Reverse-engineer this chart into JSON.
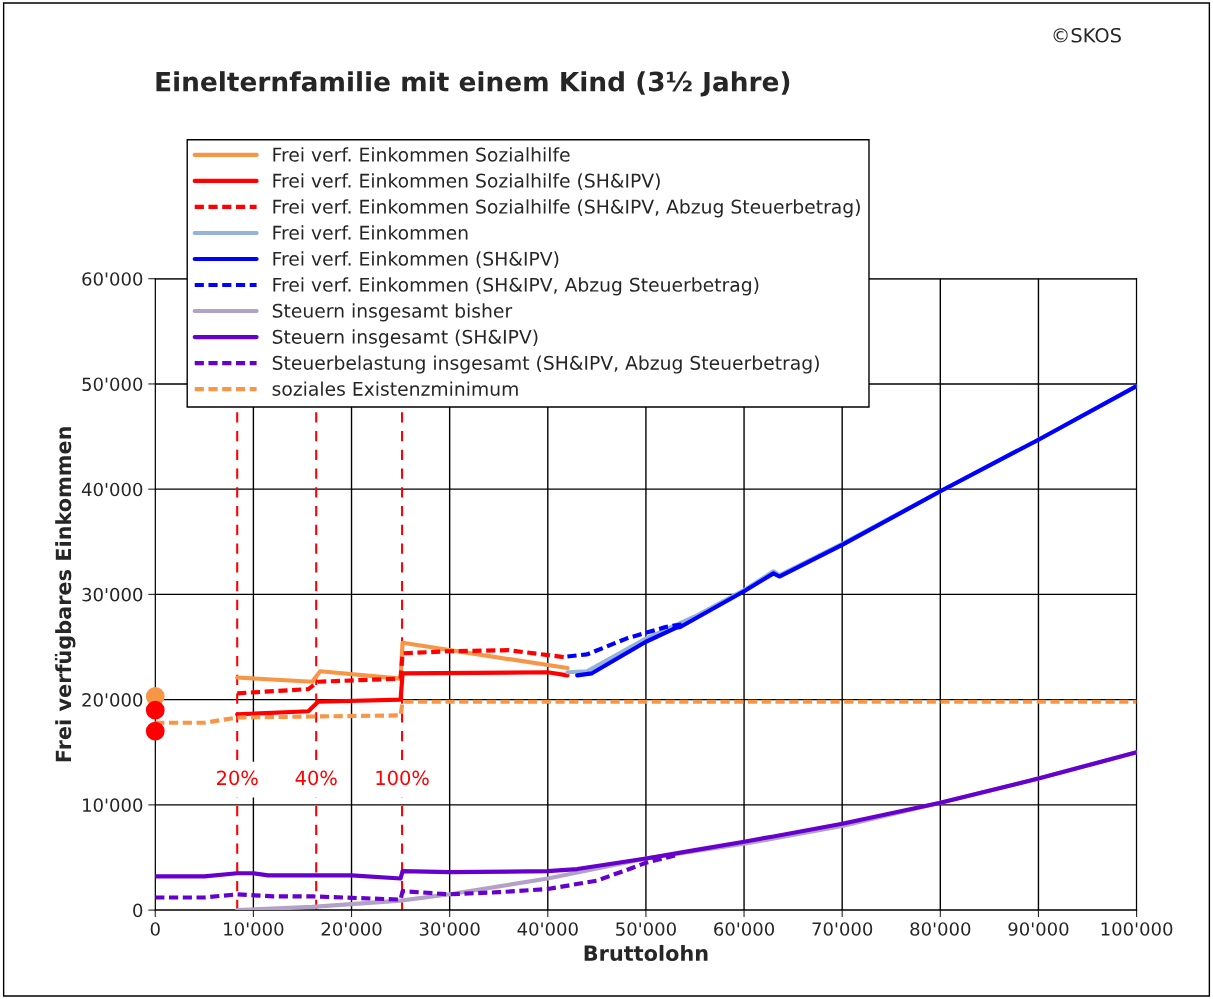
{
  "chart_data": {
    "type": "line",
    "title": "Einelternfamilie mit einem Kind (3½ Jahre)",
    "xlabel": "Bruttolohn",
    "ylabel": "Frei verfügbares Einkommen",
    "annotations": [
      "©SKOS",
      {
        "text": "20%",
        "x": 8350,
        "y": 12400
      },
      {
        "text": "40%",
        "x": 16400,
        "y": 12400
      },
      {
        "text": "100%",
        "x": 25150,
        "y": 12400
      }
    ],
    "xlim": [
      0,
      100000
    ],
    "ylim": [
      0,
      60000
    ],
    "xticks": [
      0,
      {
        "value": 10000,
        "label": "10'000"
      },
      {
        "value": 20000,
        "label": "20'000"
      },
      {
        "value": 30000,
        "label": "30'000"
      },
      {
        "value": 40000,
        "label": "40'000"
      },
      {
        "value": 50000,
        "label": "50'000"
      },
      {
        "value": 60000,
        "label": "60'000"
      },
      {
        "value": 70000,
        "label": "70'000"
      },
      {
        "value": 80000,
        "label": "80'000"
      },
      {
        "value": 90000,
        "label": "90'000"
      },
      {
        "value": 100000,
        "label": "100'000"
      }
    ],
    "yticks": [
      0,
      {
        "value": 10000,
        "label": "10'000"
      },
      {
        "value": 20000,
        "label": "20'000"
      },
      {
        "value": 30000,
        "label": "30'000"
      },
      {
        "value": 40000,
        "label": "40'000"
      },
      {
        "value": 50000,
        "label": "50'000"
      },
      {
        "value": 60000,
        "label": "60'000"
      }
    ],
    "grid": true,
    "legend": "top left",
    "ref_lines": [
      {
        "axis": "x",
        "value": 8350,
        "color": "#ff0000",
        "line_style": "dashed"
      },
      {
        "axis": "x",
        "value": 16400,
        "color": "#ff0000",
        "line_style": "dashed"
      },
      {
        "axis": "x",
        "value": 25150,
        "color": "#ff0000",
        "line_style": "dashed"
      }
    ],
    "series": [
      {
        "name": "Frei verf. Einkommen Sozialhilfe",
        "color": "#f79646",
        "line_style": "solid",
        "x": [
          8350,
          16000,
          16800,
          25000,
          25200,
          42000
        ],
        "values": [
          22100,
          21700,
          22700,
          22000,
          25400,
          23000
        ]
      },
      {
        "name": "Frei verf. Einkommen Sozialhilfe (SH&IPV)",
        "color": "#ff0000",
        "line_style": "solid",
        "x": [
          8350,
          15600,
          16600,
          25000,
          25200,
          40000,
          42000
        ],
        "values": [
          18600,
          18900,
          19800,
          20000,
          22500,
          22600,
          22300
        ]
      },
      {
        "name": "Frei verf. Einkommen Sozialhilfe (SH&IPV, Abzug Steuerbetrag)",
        "color": "#ff0000",
        "line_style": "dashed",
        "x": [
          8350,
          15600,
          16600,
          25000,
          25200,
          30000,
          36000,
          42000
        ],
        "values": [
          20600,
          21000,
          21700,
          22000,
          24400,
          24600,
          24700,
          24000
        ]
      },
      {
        "name": "Frei verf. Einkommen",
        "color": "#95b3d7",
        "line_style": "solid",
        "x": [
          42000,
          44000,
          50000,
          55000,
          60000,
          63000,
          63600,
          70000,
          80000,
          90000,
          100000
        ],
        "values": [
          22600,
          22700,
          25800,
          27900,
          30400,
          32200,
          31800,
          34800,
          39800,
          44700,
          49800
        ]
      },
      {
        "name": "Frei verf. Einkommen (SH&IPV)",
        "color": "#0000ff",
        "line_style": "solid",
        "x": [
          43000,
          44500,
          50000,
          53000,
          53500,
          60000,
          63000,
          63600,
          70000,
          80000,
          90000,
          100000
        ],
        "values": [
          22300,
          22500,
          25500,
          26800,
          26900,
          30300,
          32000,
          31700,
          34700,
          39800,
          44700,
          49800
        ]
      },
      {
        "name": "Frei verf. Einkommen (SH&IPV, Abzug Steuerbetrag)",
        "color": "#0000ff",
        "line_style": "dashed",
        "x": [
          42000,
          44000,
          48000,
          52000,
          54000
        ],
        "values": [
          24100,
          24300,
          25800,
          26900,
          27200
        ]
      },
      {
        "name": "Steuern insgesamt bisher",
        "color": "#b3a2c7",
        "line_style": "solid",
        "x": [
          8350,
          16000,
          25000,
          30000,
          40000,
          50000,
          60000,
          70000,
          80000,
          90000,
          100000
        ],
        "values": [
          0,
          300,
          900,
          1500,
          3000,
          4900,
          6300,
          8000,
          10200,
          12500,
          15000
        ]
      },
      {
        "name": "Steuern insgesamt (SH&IPV)",
        "color": "#6600cc",
        "line_style": "solid",
        "x": [
          0,
          5000,
          8350,
          10000,
          11500,
          16000,
          20000,
          25000,
          25200,
          30000,
          40000,
          43000,
          50000,
          55000,
          60000,
          63000,
          70000,
          80000,
          90000,
          100000
        ],
        "values": [
          3200,
          3200,
          3500,
          3500,
          3300,
          3300,
          3300,
          3000,
          3700,
          3600,
          3700,
          3900,
          4900,
          5700,
          6500,
          7000,
          8200,
          10200,
          12500,
          15000
        ]
      },
      {
        "name": "Steuerbelastung insgesamt (SH&IPV, Abzug Steuerbetrag)",
        "color": "#6600cc",
        "line_style": "dashed",
        "x": [
          0,
          5000,
          8350,
          12000,
          16000,
          25000,
          25200,
          30000,
          35000,
          40000,
          45000,
          48000,
          50000,
          53000
        ],
        "values": [
          1200,
          1200,
          1500,
          1300,
          1300,
          1000,
          1800,
          1500,
          1700,
          2000,
          2800,
          3800,
          4500,
          5200
        ]
      },
      {
        "name": "soziales Existenzminimum",
        "color": "#f79646",
        "line_style": "dashed",
        "x": [
          0,
          5000,
          8350,
          16000,
          25000,
          25200,
          100000
        ],
        "values": [
          17800,
          17800,
          18300,
          18400,
          18500,
          19800,
          19800
        ]
      },
      {
        "type": "scatter",
        "color": "#f79646",
        "marker": "circle",
        "x": [
          0
        ],
        "values": [
          20300
        ]
      },
      {
        "type": "scatter",
        "color": "#ff0000",
        "marker": "circle",
        "x": [
          0
        ],
        "values": [
          19000
        ]
      },
      {
        "type": "scatter",
        "color": "#ff0000",
        "marker": "circle",
        "x": [
          0
        ],
        "values": [
          17000
        ]
      }
    ]
  }
}
